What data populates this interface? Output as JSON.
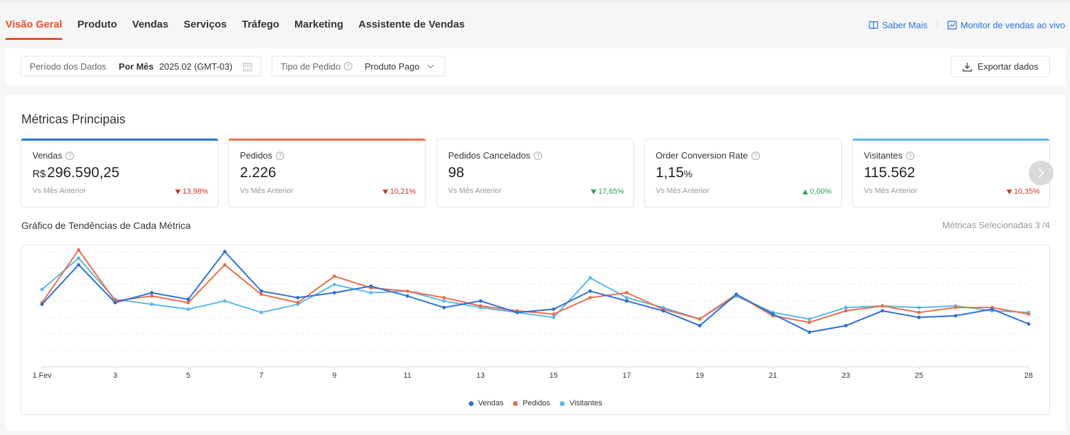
{
  "nav": {
    "tabs": [
      {
        "label": "Visão Geral",
        "active": true
      },
      {
        "label": "Produto"
      },
      {
        "label": "Vendas"
      },
      {
        "label": "Serviços"
      },
      {
        "label": "Tráfego"
      },
      {
        "label": "Marketing"
      },
      {
        "label": "Assistente de Vendas"
      }
    ],
    "saber_mais": "Saber Mais",
    "monitor": "Monitor de vendas ao vivo"
  },
  "filters": {
    "period_label": "Período dos Dados",
    "period_mode": "Por Mês",
    "period_value": "2025.02 (GMT-03)",
    "order_type_label": "Tipo de Pedido",
    "order_type_value": "Produto Pago",
    "export_label": "Exportar dados"
  },
  "metrics": {
    "title": "Métricas Principais",
    "compare_label": "Vs Mês Anterior",
    "cards": [
      {
        "name": "Vendas",
        "currency": "R$",
        "value": "296.590,25",
        "change": "13,98%",
        "direction": "down"
      },
      {
        "name": "Pedidos",
        "value": "2.226",
        "change": "10,21%",
        "direction": "down"
      },
      {
        "name": "Pedidos Cancelados",
        "value": "98",
        "change": "17,65%",
        "direction": "down-good"
      },
      {
        "name": "Order Conversion Rate",
        "value": "1,15",
        "unit": "%",
        "change": "0,00%",
        "direction": "up"
      },
      {
        "name": "Visitantes",
        "value": "115.562",
        "change": "10,35%",
        "direction": "down"
      }
    ]
  },
  "trend": {
    "title": "Gráfico de Tendências de Cada Métrica",
    "selected": "Métricas Selecionadas 3 /4"
  },
  "colors": {
    "accent": "#ee4d2d",
    "link": "#2673dd",
    "vendas": "#2b6fd6",
    "pedidos": "#f06c47",
    "visitantes": "#5ab8ea"
  },
  "chart_data": {
    "type": "line",
    "x": [
      1,
      2,
      3,
      4,
      5,
      6,
      7,
      8,
      9,
      10,
      11,
      12,
      13,
      14,
      15,
      16,
      17,
      18,
      19,
      20,
      21,
      22,
      23,
      24,
      25,
      26,
      27,
      28
    ],
    "x_tick_labels": [
      "1 Fev",
      "3",
      "5",
      "7",
      "9",
      "11",
      "13",
      "15",
      "17",
      "19",
      "21",
      "23",
      "25",
      "28"
    ],
    "x_tick_positions": [
      1,
      3,
      5,
      7,
      9,
      11,
      13,
      15,
      17,
      19,
      21,
      23,
      25,
      28
    ],
    "ylim": [
      0,
      7
    ],
    "grid": true,
    "legend_position": "bottom",
    "series": [
      {
        "name": "Vendas",
        "values": [
          3.8,
          6.2,
          3.9,
          4.5,
          4.1,
          7.0,
          4.6,
          4.2,
          4.5,
          4.9,
          4.3,
          3.6,
          4.0,
          3.3,
          3.5,
          4.6,
          4.0,
          3.4,
          2.5,
          4.4,
          3.2,
          2.1,
          2.5,
          3.4,
          3.0,
          3.1,
          3.5,
          2.6
        ]
      },
      {
        "name": "Pedidos",
        "values": [
          3.9,
          7.1,
          4.0,
          4.3,
          3.9,
          6.2,
          4.4,
          3.9,
          5.5,
          4.8,
          4.6,
          4.2,
          3.7,
          3.4,
          3.2,
          4.2,
          4.5,
          3.5,
          2.9,
          4.4,
          3.1,
          2.7,
          3.4,
          3.7,
          3.3,
          3.6,
          3.6,
          3.2
        ]
      },
      {
        "name": "Visitantes",
        "values": [
          4.7,
          6.6,
          4.1,
          3.8,
          3.5,
          4.0,
          3.3,
          3.8,
          5.0,
          4.5,
          4.6,
          4.0,
          3.6,
          3.3,
          3.0,
          5.4,
          4.2,
          3.6,
          2.9,
          4.3,
          3.3,
          2.9,
          3.6,
          3.7,
          3.6,
          3.7,
          3.4,
          3.3
        ]
      }
    ]
  }
}
